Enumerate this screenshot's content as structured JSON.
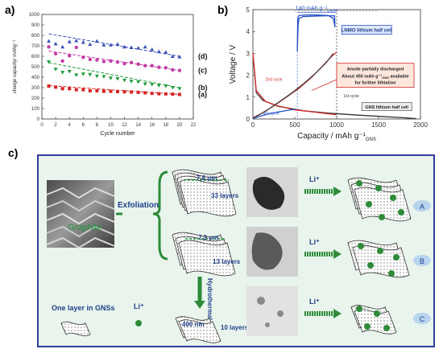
{
  "figure": {
    "panel_a_label": "a)",
    "panel_b_label": "b)",
    "panel_c_label": "c)"
  },
  "chart_data": [
    {
      "id": "a",
      "type": "scatter",
      "xlabel": "Cycle number",
      "ylabel": "charge capacity/ mAhg⁻¹",
      "xlim": [
        0,
        22
      ],
      "ylim": [
        0,
        1000
      ],
      "xticks": [
        0,
        2,
        4,
        6,
        8,
        10,
        12,
        14,
        16,
        18,
        20,
        22
      ],
      "yticks": [
        0,
        100,
        200,
        300,
        400,
        500,
        600,
        700,
        800,
        900,
        1000
      ],
      "grid": false,
      "series": [
        {
          "name": "(d)",
          "color": "#3a4fb8",
          "marker": "triangle",
          "trend": [
            [
              1,
              815
            ],
            [
              20,
              600
            ]
          ],
          "points": [
            [
              1,
              745
            ],
            [
              2,
              720
            ],
            [
              3,
              690
            ],
            [
              4,
              740
            ],
            [
              5,
              750
            ],
            [
              6,
              735
            ],
            [
              7,
              715
            ],
            [
              8,
              745
            ],
            [
              9,
              710
            ],
            [
              10,
              710
            ],
            [
              11,
              715
            ],
            [
              12,
              690
            ],
            [
              13,
              685
            ],
            [
              14,
              680
            ],
            [
              15,
              690
            ],
            [
              16,
              665
            ],
            [
              17,
              645
            ],
            [
              18,
              640
            ],
            [
              19,
              600
            ],
            [
              20,
              595
            ]
          ]
        },
        {
          "name": "(c)",
          "color": "#c23ca8",
          "marker": "circle",
          "trend": [
            [
              1,
              650
            ],
            [
              20,
              465
            ]
          ],
          "points": [
            [
              1,
              690
            ],
            [
              2,
              625
            ],
            [
              3,
              555
            ],
            [
              4,
              605
            ],
            [
              5,
              685
            ],
            [
              6,
              590
            ],
            [
              7,
              570
            ],
            [
              8,
              565
            ],
            [
              9,
              550
            ],
            [
              10,
              555
            ],
            [
              11,
              545
            ],
            [
              12,
              530
            ],
            [
              13,
              540
            ],
            [
              14,
              525
            ],
            [
              15,
              510
            ],
            [
              16,
              510
            ],
            [
              17,
              495
            ],
            [
              18,
              490
            ],
            [
              19,
              470
            ],
            [
              20,
              465
            ]
          ]
        },
        {
          "name": "(b)",
          "color": "#1e9a3c",
          "marker": "triangle-down",
          "trend": [
            [
              1,
              540
            ],
            [
              20,
              300
            ]
          ],
          "points": [
            [
              1,
              545
            ],
            [
              2,
              475
            ],
            [
              3,
              445
            ],
            [
              4,
              455
            ],
            [
              5,
              420
            ],
            [
              6,
              430
            ],
            [
              7,
              425
            ],
            [
              8,
              410
            ],
            [
              9,
              405
            ],
            [
              10,
              390
            ],
            [
              11,
              385
            ],
            [
              12,
              370
            ],
            [
              13,
              360
            ],
            [
              14,
              355
            ],
            [
              15,
              335
            ],
            [
              16,
              330
            ],
            [
              17,
              320
            ],
            [
              18,
              315
            ],
            [
              19,
              300
            ],
            [
              20,
              290
            ]
          ]
        },
        {
          "name": "(a)",
          "color": "#d62424",
          "marker": "square",
          "trend": [
            [
              1,
              320
            ],
            [
              20,
              235
            ]
          ],
          "points": [
            [
              1,
              315
            ],
            [
              2,
              305
            ],
            [
              3,
              290
            ],
            [
              4,
              290
            ],
            [
              5,
              280
            ],
            [
              6,
              280
            ],
            [
              7,
              270
            ],
            [
              8,
              270
            ],
            [
              9,
              265
            ],
            [
              10,
              265
            ],
            [
              11,
              262
            ],
            [
              12,
              260
            ],
            [
              13,
              258
            ],
            [
              14,
              255
            ],
            [
              15,
              250
            ],
            [
              16,
              245
            ],
            [
              17,
              242
            ],
            [
              18,
              240
            ],
            [
              19,
              238
            ],
            [
              20,
              235
            ]
          ]
        }
      ]
    },
    {
      "id": "b",
      "type": "line",
      "xlabel": "Capacity / mAh g⁻¹",
      "xlabel_sub": "GNS",
      "ylabel": "Voltage / V",
      "xlim": [
        0,
        2000
      ],
      "ylim": [
        0,
        5
      ],
      "xticks": [
        0,
        500,
        1000,
        1500,
        2000
      ],
      "yticks": [
        0,
        1,
        2,
        3,
        4,
        5
      ],
      "annotations": {
        "capacity_bracket": "140 mAh g⁻¹",
        "capacity_bracket_sub": "LNMO",
        "lnmo_box": "LNMO lithium half cell",
        "anode_box_line1": "Anode partially discharged",
        "anode_box_line2": "About 450 mAh g⁻¹",
        "anode_box_sub": "GNS",
        "anode_box_line2_tail": " available",
        "anode_box_line3": "for further lithiation",
        "gns_box": "GNS lithium half cell",
        "cycle_1st": "1st cycle",
        "cycle_2nd": "2nd cycle",
        "cycle_3rd": "3rd cycle"
      },
      "series": [
        {
          "name": "LNMO lithium half cell",
          "color": "#2a55c8",
          "points": [
            [
              530,
              3.1
            ],
            [
              535,
              4.6
            ],
            [
              545,
              4.72
            ],
            [
              600,
              4.75
            ],
            [
              700,
              4.76
            ],
            [
              800,
              4.75
            ],
            [
              900,
              4.73
            ],
            [
              960,
              4.6
            ],
            [
              980,
              4.2
            ],
            [
              975,
              4.72
            ],
            [
              900,
              4.72
            ],
            [
              800,
              4.71
            ],
            [
              700,
              4.7
            ],
            [
              600,
              4.68
            ],
            [
              550,
              4.6
            ],
            [
              540,
              4.3
            ],
            [
              530,
              3.1
            ]
          ]
        },
        {
          "name": "GNS 1st cycle discharge",
          "color": "#333333",
          "points": [
            [
              0,
              3.0
            ],
            [
              40,
              1.2
            ],
            [
              120,
              0.85
            ],
            [
              300,
              0.58
            ],
            [
              600,
              0.38
            ],
            [
              900,
              0.27
            ],
            [
              1200,
              0.19
            ],
            [
              1500,
              0.12
            ],
            [
              1800,
              0.06
            ],
            [
              1950,
              0.02
            ]
          ]
        },
        {
          "name": "GNS 2nd cycle discharge",
          "color": "#d32a2a",
          "points": [
            [
              0,
              3.0
            ],
            [
              40,
              1.3
            ],
            [
              150,
              0.8
            ],
            [
              300,
              0.6
            ],
            [
              500,
              0.42
            ],
            [
              700,
              0.33
            ],
            [
              900,
              0.24
            ],
            [
              1000,
              0.2
            ]
          ]
        },
        {
          "name": "GNS 2nd cycle charge",
          "color": "#d32a2a",
          "points": [
            [
              0,
              0.05
            ],
            [
              100,
              0.25
            ],
            [
              250,
              0.6
            ],
            [
              400,
              1.0
            ],
            [
              550,
              1.4
            ],
            [
              700,
              1.9
            ],
            [
              850,
              2.5
            ],
            [
              950,
              2.9
            ],
            [
              1000,
              3.05
            ]
          ]
        },
        {
          "name": "GNS 1st cycle charge",
          "color": "#444444",
          "points": [
            [
              0,
              0.03
            ],
            [
              150,
              0.35
            ],
            [
              300,
              0.75
            ],
            [
              450,
              1.15
            ],
            [
              600,
              1.6
            ],
            [
              750,
              2.1
            ],
            [
              880,
              2.6
            ],
            [
              960,
              3.0
            ]
          ]
        },
        {
          "name": "GNS 3rd cycle",
          "color": "#2a55c8",
          "points": [
            [
              0,
              0.03
            ],
            [
              150,
              0.2
            ],
            [
              300,
              0.32
            ],
            [
              420,
              0.4
            ],
            [
              500,
              0.45
            ]
          ]
        }
      ]
    }
  ],
  "panel_c": {
    "sem_label": "Graphite",
    "exfoliation": "Exfoliation",
    "dim_a_width": "7.8 μm",
    "dim_a_layers": "33 layers",
    "dim_b_width": "7.3 μm",
    "dim_b_layers": "13 layers",
    "hydrothermal": "Hydrothermal",
    "dim_c_width": "400 nm",
    "dim_c_layers": "10 layers",
    "one_layer_label": "One layer in GNSs",
    "li_plus": "Li⁺",
    "arrow_li_a": "Li⁺",
    "arrow_li_b": "Li⁺",
    "arrow_li_c": "Li⁺",
    "label_a": "A",
    "label_b": "B",
    "label_c": "C"
  }
}
